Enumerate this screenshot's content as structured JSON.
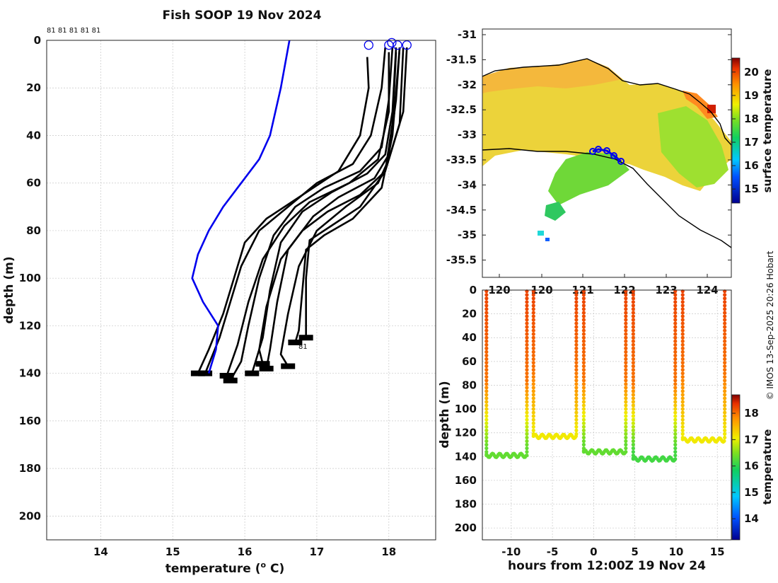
{
  "chart_data": [
    {
      "type": "line",
      "title": "Fish SOOP 19 Nov 2024",
      "xlabel": "temperature (",
      "xlabel_sup": "o",
      "xlabel_end": " C)",
      "ylabel": "depth (m)",
      "xlim": [
        13.25,
        18.65
      ],
      "ylim": [
        210,
        0
      ],
      "xticks": [
        14,
        15,
        16,
        17,
        18
      ],
      "yticks": [
        0,
        20,
        40,
        60,
        80,
        100,
        120,
        140,
        160,
        180,
        200
      ],
      "top_tag_labels": "81 81 81 81 81",
      "end_label": "81",
      "climatology": {
        "name": "reference profile",
        "color": "#0000ee",
        "points": [
          [
            16.62,
            0
          ],
          [
            16.5,
            20
          ],
          [
            16.35,
            40
          ],
          [
            16.2,
            50
          ],
          [
            15.95,
            60
          ],
          [
            15.7,
            70
          ],
          [
            15.5,
            80
          ],
          [
            15.35,
            90
          ],
          [
            15.27,
            100
          ],
          [
            15.42,
            110
          ],
          [
            15.63,
            120
          ],
          [
            15.6,
            130
          ],
          [
            15.5,
            140
          ]
        ]
      },
      "profiles": [
        [
          [
            17.7,
            7
          ],
          [
            17.72,
            20
          ],
          [
            17.6,
            40
          ],
          [
            17.3,
            55
          ],
          [
            16.8,
            65
          ],
          [
            16.3,
            75
          ],
          [
            16.0,
            85
          ],
          [
            15.85,
            100
          ],
          [
            15.7,
            115
          ],
          [
            15.5,
            130
          ],
          [
            15.35,
            140
          ]
        ],
        [
          [
            17.95,
            3
          ],
          [
            17.9,
            20
          ],
          [
            17.75,
            40
          ],
          [
            17.5,
            52
          ],
          [
            17.0,
            60
          ],
          [
            16.6,
            70
          ],
          [
            16.2,
            80
          ],
          [
            15.95,
            95
          ],
          [
            15.8,
            110
          ],
          [
            15.65,
            125
          ],
          [
            15.45,
            140
          ]
        ],
        [
          [
            18.05,
            3
          ],
          [
            18.0,
            25
          ],
          [
            17.9,
            45
          ],
          [
            17.6,
            55
          ],
          [
            17.1,
            62
          ],
          [
            16.7,
            70
          ],
          [
            16.4,
            82
          ],
          [
            16.2,
            100
          ],
          [
            16.05,
            120
          ],
          [
            15.95,
            135
          ],
          [
            15.8,
            143
          ]
        ],
        [
          [
            18.1,
            3
          ],
          [
            18.05,
            30
          ],
          [
            17.95,
            48
          ],
          [
            17.7,
            56
          ],
          [
            17.2,
            64
          ],
          [
            16.8,
            72
          ],
          [
            16.5,
            85
          ],
          [
            16.35,
            105
          ],
          [
            16.25,
            125
          ],
          [
            16.1,
            140
          ]
        ],
        [
          [
            18.15,
            3
          ],
          [
            18.1,
            25
          ],
          [
            18.0,
            48
          ],
          [
            17.8,
            58
          ],
          [
            17.3,
            66
          ],
          [
            16.95,
            74
          ],
          [
            16.6,
            88
          ],
          [
            16.45,
            110
          ],
          [
            16.35,
            130
          ],
          [
            16.3,
            138
          ]
        ],
        [
          [
            18.25,
            3
          ],
          [
            18.2,
            30
          ],
          [
            18.0,
            50
          ],
          [
            17.85,
            60
          ],
          [
            17.4,
            70
          ],
          [
            17.0,
            80
          ],
          [
            16.75,
            95
          ],
          [
            16.6,
            115
          ],
          [
            16.5,
            132
          ],
          [
            16.6,
            137
          ]
        ],
        [
          [
            18.15,
            3
          ],
          [
            18.05,
            40
          ],
          [
            17.9,
            62
          ],
          [
            17.5,
            75
          ],
          [
            17.1,
            82
          ],
          [
            16.85,
            88
          ],
          [
            16.8,
            105
          ],
          [
            16.75,
            122
          ],
          [
            16.7,
            127
          ]
        ],
        [
          [
            18.2,
            3
          ],
          [
            18.15,
            35
          ],
          [
            17.95,
            55
          ],
          [
            17.6,
            70
          ],
          [
            17.2,
            78
          ],
          [
            16.9,
            84
          ],
          [
            16.85,
            100
          ],
          [
            16.85,
            120
          ],
          [
            16.85,
            125
          ]
        ],
        [
          [
            18.0,
            5
          ],
          [
            18.0,
            30
          ],
          [
            17.85,
            50
          ],
          [
            17.45,
            60
          ],
          [
            16.9,
            68
          ],
          [
            16.55,
            78
          ],
          [
            16.25,
            92
          ],
          [
            16.05,
            110
          ],
          [
            15.9,
            128
          ],
          [
            15.75,
            141
          ]
        ],
        [
          [
            18.1,
            5
          ],
          [
            18.05,
            35
          ],
          [
            17.95,
            55
          ],
          [
            17.6,
            65
          ],
          [
            17.15,
            72
          ],
          [
            16.8,
            80
          ],
          [
            16.5,
            92
          ],
          [
            16.3,
            112
          ],
          [
            16.2,
            130
          ],
          [
            16.25,
            136
          ]
        ]
      ],
      "markers": [
        [
          17.72,
          2
        ],
        [
          18.0,
          2
        ],
        [
          18.04,
          1
        ],
        [
          18.12,
          2
        ],
        [
          18.25,
          2
        ]
      ]
    },
    {
      "type": "heatmap",
      "name": "surface temperature map",
      "xticks_visible": [
        120,
        121,
        122,
        123,
        124
      ],
      "xtick_labels": [
        "120",
        "120",
        "121",
        "122",
        "123",
        "124"
      ],
      "yticks": [
        -31,
        -31.5,
        -32,
        -32.5,
        -33,
        -33.5,
        -34,
        -34.5,
        -35,
        -35.5
      ],
      "colorbar_label": "surface temperature",
      "colorbar_ticks": [
        15,
        16,
        17,
        18,
        19,
        20
      ],
      "colorbar_range": [
        14.4,
        20.6
      ],
      "track_color": "#0000ee"
    },
    {
      "type": "scatter",
      "name": "depth-time section",
      "xlabel": "hours from 12:00Z 19 Nov 24",
      "ylabel": "depth (m)",
      "xticks": [
        -10,
        -5,
        0,
        5,
        10,
        15
      ],
      "yticks": [
        0,
        20,
        40,
        60,
        80,
        100,
        120,
        140,
        160,
        180,
        200
      ],
      "xlim": [
        -13.5,
        16.7
      ],
      "ylim": [
        210,
        0
      ],
      "colorbar_label": "temperature",
      "colorbar_ticks": [
        14,
        15,
        16,
        17,
        18
      ],
      "colorbar_range": [
        13.2,
        18.7
      ],
      "casts": [
        {
          "start": -13.0,
          "end": -8.1,
          "bottom": 139,
          "bottom_temp": 16.2
        },
        {
          "start": -7.3,
          "end": -2.1,
          "bottom": 123,
          "bottom_temp": 17.0
        },
        {
          "start": -1.2,
          "end": 3.9,
          "bottom": 136,
          "bottom_temp": 16.2
        },
        {
          "start": 4.8,
          "end": 9.9,
          "bottom": 142,
          "bottom_temp": 16.0
        },
        {
          "start": 10.8,
          "end": 15.9,
          "bottom": 126,
          "bottom_temp": 17.0
        }
      ]
    }
  ],
  "credit": "© IMOS 13-Sep-2025 20:26 Hobart"
}
